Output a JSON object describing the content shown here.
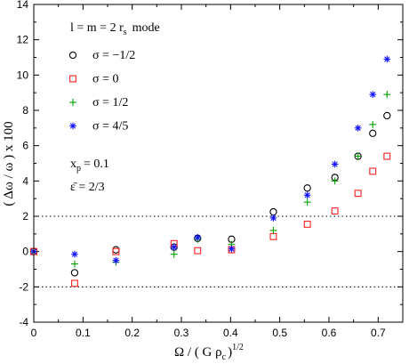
{
  "chart_data": {
    "type": "scatter",
    "xlabel": "Ω / ( G ρ",
    "xlabel_sub": "c",
    "xlabel_tail": ")",
    "xlabel_sup": "1/2",
    "ylabel": "( Δω / ω ) x 100",
    "xlim": [
      0,
      0.75
    ],
    "ylim": [
      -4,
      14
    ],
    "x_ticks": [
      0,
      0.1,
      0.2,
      0.3,
      0.4,
      0.5,
      0.6,
      0.7
    ],
    "x_tick_labels": [
      "0",
      "0.1",
      "0.2",
      "0.3",
      "0.4",
      "0.5",
      "0.6",
      "0.7"
    ],
    "y_ticks": [
      -4,
      -2,
      0,
      2,
      4,
      6,
      8,
      10,
      12,
      14
    ],
    "y_tick_labels": [
      "-4",
      "-2",
      "0",
      "2",
      "4",
      "6",
      "8",
      "10",
      "12",
      "14"
    ],
    "grid": false,
    "reference_lines_y": [
      2,
      -2
    ],
    "annotations": {
      "mode_text": "l = m = 2   r",
      "mode_sub": "s",
      "mode_tail": "mode",
      "xp_text": "x",
      "xp_sub": "p",
      "xp_val": "= 0.1",
      "eps_text": "ε̄ = 2/3"
    },
    "series": [
      {
        "name": "σ = −1/2",
        "marker": "circle",
        "color": "#000000",
        "x": [
          0.0,
          0.083,
          0.167,
          0.285,
          0.333,
          0.402,
          0.487,
          0.556,
          0.612,
          0.659,
          0.689,
          0.718
        ],
        "y": [
          0.0,
          -1.2,
          0.1,
          0.25,
          0.75,
          0.7,
          2.25,
          3.6,
          4.2,
          5.4,
          6.7,
          7.7
        ]
      },
      {
        "name": "σ =  0",
        "marker": "square",
        "color": "#ff2020",
        "x": [
          0.0,
          0.083,
          0.167,
          0.285,
          0.333,
          0.402,
          0.487,
          0.556,
          0.612,
          0.659,
          0.689,
          0.718
        ],
        "y": [
          0.0,
          -1.8,
          0.0,
          0.45,
          0.05,
          0.1,
          0.85,
          1.55,
          2.3,
          3.3,
          4.55,
          5.4
        ]
      },
      {
        "name": "σ =  1/2",
        "marker": "plus",
        "color": "#00a000",
        "x": [
          0.0,
          0.083,
          0.167,
          0.285,
          0.333,
          0.402,
          0.487,
          0.556,
          0.612,
          0.659,
          0.689,
          0.718
        ],
        "y": [
          0.0,
          -0.7,
          -0.6,
          -0.15,
          0.7,
          0.4,
          1.2,
          2.8,
          4.0,
          5.4,
          7.2,
          8.9
        ]
      },
      {
        "name": "σ =  4/5",
        "marker": "asterisk",
        "color": "#1010ff",
        "x": [
          0.0,
          0.083,
          0.167,
          0.285,
          0.333,
          0.402,
          0.487,
          0.556,
          0.612,
          0.659,
          0.689,
          0.718
        ],
        "y": [
          0.0,
          -0.15,
          -0.5,
          0.25,
          0.8,
          0.15,
          1.9,
          3.2,
          4.95,
          7.0,
          8.9,
          10.9
        ]
      }
    ]
  }
}
